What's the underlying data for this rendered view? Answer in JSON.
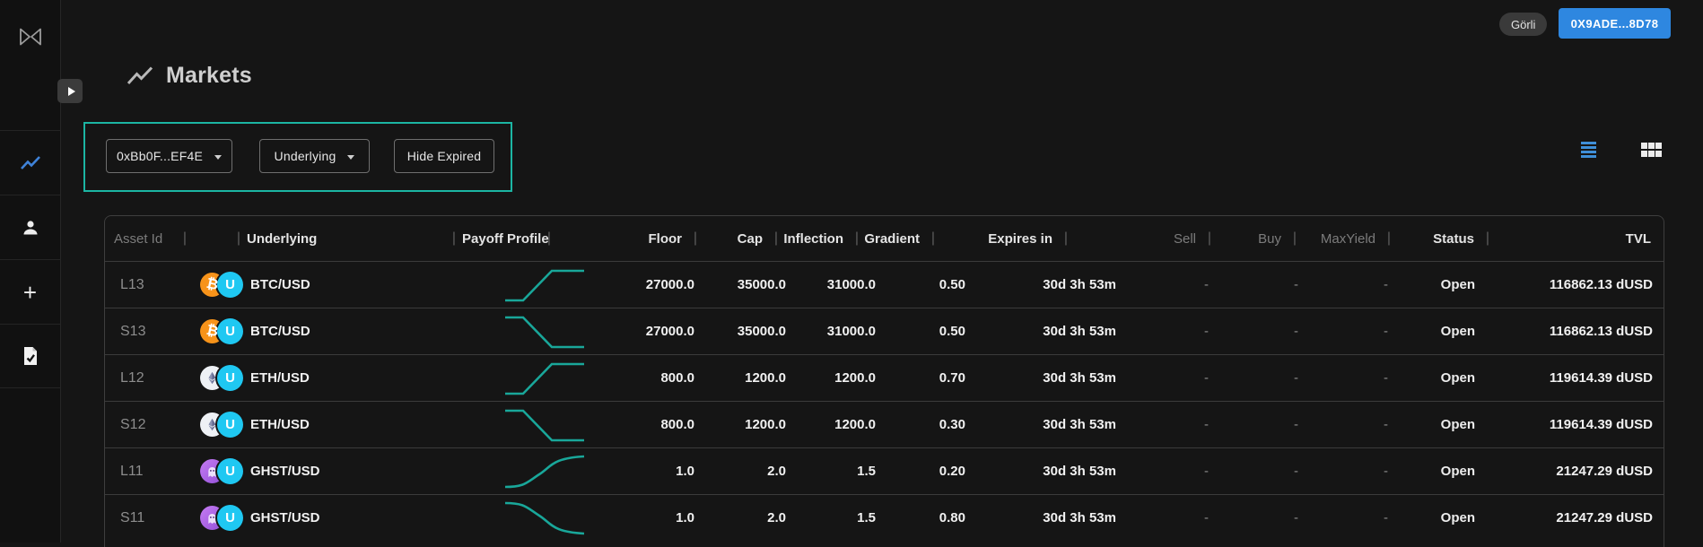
{
  "topbar": {
    "network_label": "Görli",
    "wallet_label": "0X9ADE...8D78"
  },
  "sidebar": {
    "logo": "bowtie-logo",
    "items": [
      {
        "icon": "trending-chart-icon",
        "active": true
      },
      {
        "icon": "person-icon",
        "active": false
      },
      {
        "icon": "plus-icon",
        "active": false
      },
      {
        "icon": "document-check-icon",
        "active": false
      }
    ]
  },
  "page": {
    "title": "Markets"
  },
  "filters": {
    "pool_dropdown": "0xBb0F...EF4E",
    "underlying_dropdown": "Underlying",
    "hide_expired_button": "Hide Expired"
  },
  "view_toggle": {
    "active": "list",
    "options": [
      "list",
      "grid"
    ]
  },
  "table": {
    "columns": [
      {
        "key": "asset_id",
        "label": "Asset Id",
        "align": "left",
        "dim": true,
        "pipe": true
      },
      {
        "key": "icon",
        "label": "",
        "align": "left",
        "dim": true,
        "pipe": true
      },
      {
        "key": "underlying",
        "label": "Underlying",
        "align": "left",
        "dim": false,
        "pipe": true
      },
      {
        "key": "payoff",
        "label": "Payoff Profile",
        "align": "left",
        "dim": false,
        "pipe": true
      },
      {
        "key": "floor",
        "label": "Floor",
        "align": "right",
        "dim": false,
        "pipe": true
      },
      {
        "key": "cap",
        "label": "Cap",
        "align": "right",
        "dim": false,
        "pipe": true
      },
      {
        "key": "inflection",
        "label": "Inflection",
        "align": "right",
        "dim": false,
        "pipe": true
      },
      {
        "key": "gradient",
        "label": "Gradient",
        "align": "right",
        "dim": false,
        "pipe": true
      },
      {
        "key": "expires_in",
        "label": "Expires in",
        "align": "right",
        "dim": false,
        "pipe": true
      },
      {
        "key": "sell",
        "label": "Sell",
        "align": "right",
        "dim": true,
        "pipe": true
      },
      {
        "key": "buy",
        "label": "Buy",
        "align": "right",
        "dim": true,
        "pipe": true
      },
      {
        "key": "max_yield",
        "label": "MaxYield",
        "align": "right",
        "dim": true,
        "pipe": true
      },
      {
        "key": "status",
        "label": "Status",
        "align": "right",
        "dim": false,
        "pipe": true
      },
      {
        "key": "tvl",
        "label": "TVL",
        "align": "right",
        "dim": false,
        "pipe": false
      }
    ],
    "rows": [
      {
        "asset_id": "L13",
        "icon": "btc",
        "underlying": "BTC/USD",
        "payoff": {
          "direction": "long",
          "shape": "linear"
        },
        "floor": "27000.0",
        "cap": "35000.0",
        "inflection": "31000.0",
        "gradient": "0.50",
        "expires_in": "30d 3h 53m",
        "sell": "-",
        "buy": "-",
        "max_yield": "-",
        "status": "Open",
        "tvl": "116862.13 dUSD"
      },
      {
        "asset_id": "S13",
        "icon": "btc",
        "underlying": "BTC/USD",
        "payoff": {
          "direction": "short",
          "shape": "linear"
        },
        "floor": "27000.0",
        "cap": "35000.0",
        "inflection": "31000.0",
        "gradient": "0.50",
        "expires_in": "30d 3h 53m",
        "sell": "-",
        "buy": "-",
        "max_yield": "-",
        "status": "Open",
        "tvl": "116862.13 dUSD"
      },
      {
        "asset_id": "L12",
        "icon": "eth",
        "underlying": "ETH/USD",
        "payoff": {
          "direction": "long",
          "shape": "linear"
        },
        "floor": "800.0",
        "cap": "1200.0",
        "inflection": "1200.0",
        "gradient": "0.70",
        "expires_in": "30d 3h 53m",
        "sell": "-",
        "buy": "-",
        "max_yield": "-",
        "status": "Open",
        "tvl": "119614.39 dUSD"
      },
      {
        "asset_id": "S12",
        "icon": "eth",
        "underlying": "ETH/USD",
        "payoff": {
          "direction": "short",
          "shape": "linear"
        },
        "floor": "800.0",
        "cap": "1200.0",
        "inflection": "1200.0",
        "gradient": "0.30",
        "expires_in": "30d 3h 53m",
        "sell": "-",
        "buy": "-",
        "max_yield": "-",
        "status": "Open",
        "tvl": "119614.39 dUSD"
      },
      {
        "asset_id": "L11",
        "icon": "ghst",
        "underlying": "GHST/USD",
        "payoff": {
          "direction": "long",
          "shape": "smooth"
        },
        "floor": "1.0",
        "cap": "2.0",
        "inflection": "1.5",
        "gradient": "0.20",
        "expires_in": "30d 3h 53m",
        "sell": "-",
        "buy": "-",
        "max_yield": "-",
        "status": "Open",
        "tvl": "21247.29 dUSD"
      },
      {
        "asset_id": "S11",
        "icon": "ghst",
        "underlying": "GHST/USD",
        "payoff": {
          "direction": "short",
          "shape": "smooth"
        },
        "floor": "1.0",
        "cap": "2.0",
        "inflection": "1.5",
        "gradient": "0.80",
        "expires_in": "30d 3h 53m",
        "sell": "-",
        "buy": "-",
        "max_yield": "-",
        "status": "Open",
        "tvl": "21247.29 dUSD"
      }
    ]
  },
  "colors": {
    "accent_teal": "#1cb5a3",
    "payoff_line": "#19a79a",
    "wallet_blue": "#2e87e0",
    "nav_active_blue": "#3f83d9",
    "u_token_cyan": "#1fc8f2",
    "btc_orange": "#f7931a",
    "ghst_purple": "#9350d8"
  }
}
